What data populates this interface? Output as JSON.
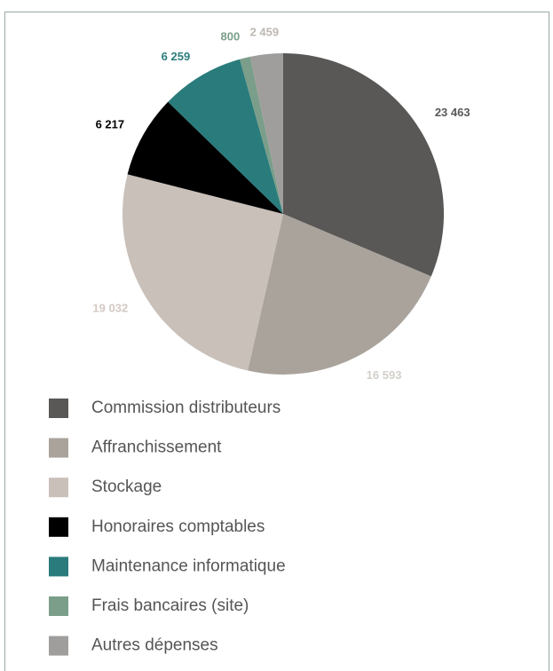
{
  "chart_data": {
    "type": "pie",
    "categories": [
      "Commission distributeurs",
      "Affranchissement",
      "Stockage",
      "Honoraires comptables",
      "Maintenance informatique",
      "Frais bancaires (site)",
      "Autres dépenses"
    ],
    "values": [
      23463,
      16593,
      19032,
      6217,
      6259,
      800,
      2459
    ],
    "value_labels": [
      "23 463",
      "16 593",
      "19 032",
      "6 217",
      "6 259",
      "800",
      "2 459"
    ],
    "colors": [
      "#595856",
      "#a9a39c",
      "#c9c0ba",
      "#000000",
      "#2a7b7c",
      "#7a9e8a",
      "#a09e9c"
    ],
    "label_colors": [
      "#595856",
      "#d3cfcb",
      "#d3c9c3",
      "#000000",
      "#2a7b7c",
      "#7a9e8a",
      "#bdb8b3"
    ],
    "legend": "bottom"
  }
}
